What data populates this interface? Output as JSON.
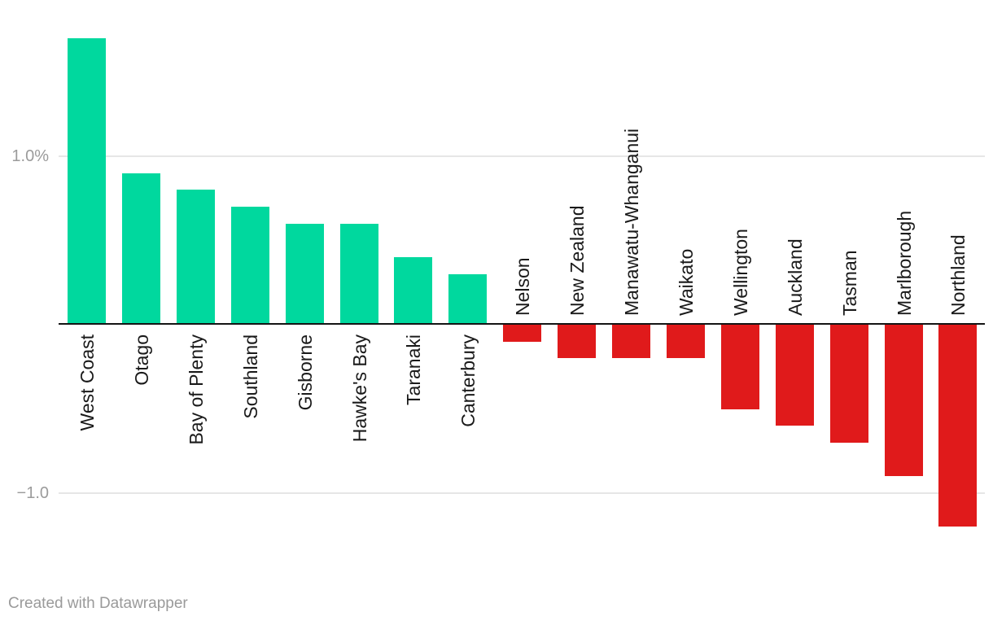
{
  "chart_data": {
    "type": "bar",
    "title": "",
    "xlabel": "",
    "ylabel": "",
    "unit": "%",
    "categories": [
      "West Coast",
      "Otago",
      "Bay of Plenty",
      "Southland",
      "Gisborne",
      "Hawke's Bay",
      "Taranaki",
      "Canterbury",
      "Nelson",
      "New Zealand",
      "Manawatu-Whanganui",
      "Waikato",
      "Wellington",
      "Auckland",
      "Tasman",
      "Marlborough",
      "Northland"
    ],
    "values": [
      1.7,
      0.9,
      0.8,
      0.7,
      0.6,
      0.6,
      0.4,
      0.3,
      -0.1,
      -0.2,
      -0.2,
      -0.2,
      -0.5,
      -0.6,
      -0.7,
      -0.9,
      -1.2
    ],
    "baseline": 0,
    "ylim": [
      -1.3,
      1.9
    ],
    "y_ticks": [
      {
        "value": 1,
        "label": "1.0%"
      },
      {
        "value": -1,
        "label": "−1.0"
      }
    ],
    "grid": "horizontal",
    "legend": "none",
    "label_rotation": "vertical-bottom-to-top",
    "colors": {
      "positive": "#00d89e",
      "negative": "#e01a1b",
      "gridline": "#e6e6e6",
      "baseline": "#141414",
      "tick_text": "#9b9b9b",
      "label_text": "#1a1a1a"
    }
  },
  "footer": {
    "attribution": "Created with Datawrapper"
  }
}
